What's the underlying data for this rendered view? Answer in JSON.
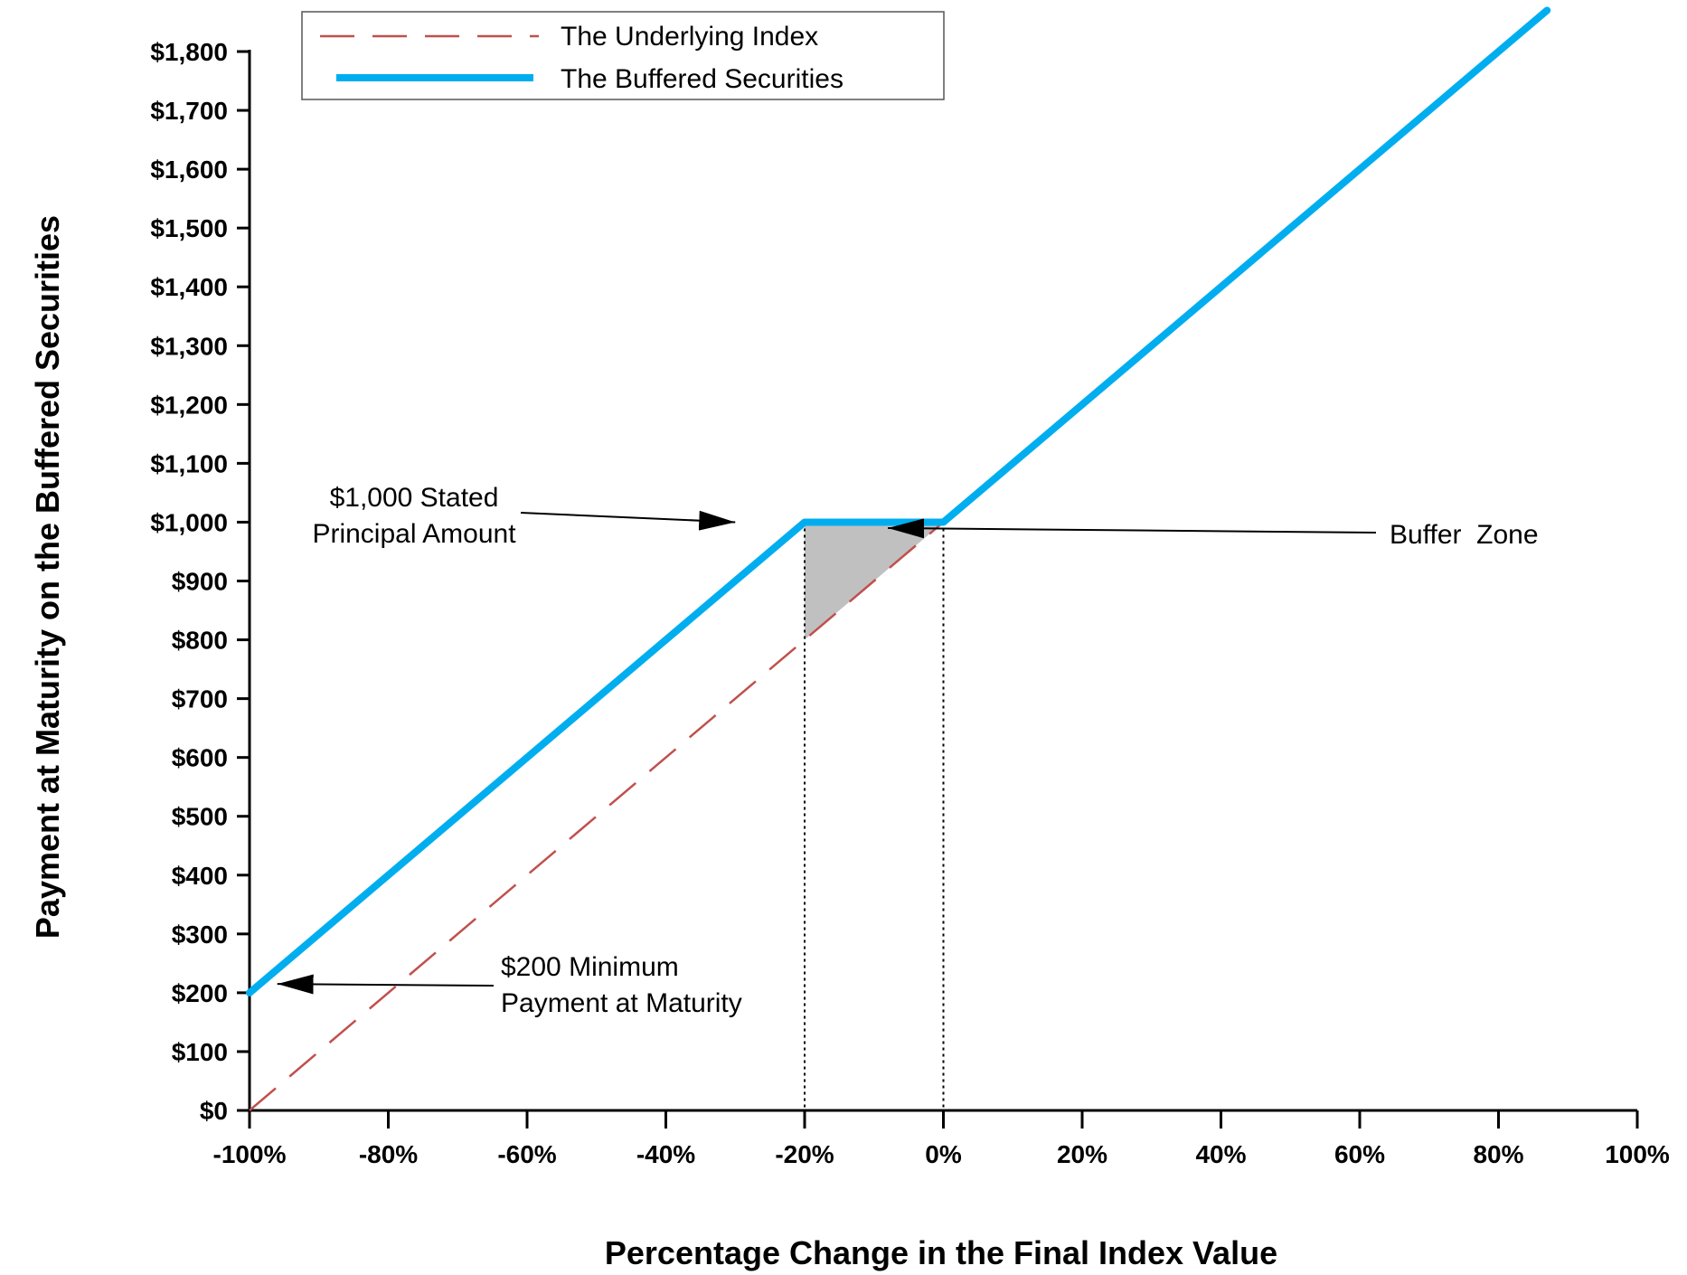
{
  "chart_data": {
    "type": "line",
    "xlabel": "Percentage Change in the Final Index Value",
    "ylabel": "Payment at Maturity on the Buffered Securities",
    "xlim": [
      -100,
      100
    ],
    "ylim": [
      0,
      1800
    ],
    "x_ticks": [
      {
        "value": -100,
        "label": "-100%"
      },
      {
        "value": -80,
        "label": "-80%"
      },
      {
        "value": -60,
        "label": "-60%"
      },
      {
        "value": -40,
        "label": "-40%"
      },
      {
        "value": -20,
        "label": "-20%"
      },
      {
        "value": 0,
        "label": "0%"
      },
      {
        "value": 20,
        "label": "20%"
      },
      {
        "value": 40,
        "label": "40%"
      },
      {
        "value": 60,
        "label": "60%"
      },
      {
        "value": 80,
        "label": "80%"
      },
      {
        "value": 100,
        "label": "100%"
      }
    ],
    "y_ticks": [
      {
        "value": 0,
        "label": "$0"
      },
      {
        "value": 100,
        "label": "$100"
      },
      {
        "value": 200,
        "label": "$200"
      },
      {
        "value": 300,
        "label": "$300"
      },
      {
        "value": 400,
        "label": "$400"
      },
      {
        "value": 500,
        "label": "$500"
      },
      {
        "value": 600,
        "label": "$600"
      },
      {
        "value": 700,
        "label": "$700"
      },
      {
        "value": 800,
        "label": "$800"
      },
      {
        "value": 900,
        "label": "$900"
      },
      {
        "value": 1000,
        "label": "$1,000"
      },
      {
        "value": 1100,
        "label": "$1,100"
      },
      {
        "value": 1200,
        "label": "$1,200"
      },
      {
        "value": 1300,
        "label": "$1,300"
      },
      {
        "value": 1400,
        "label": "$1,400"
      },
      {
        "value": 1500,
        "label": "$1,500"
      },
      {
        "value": 1600,
        "label": "$1,600"
      },
      {
        "value": 1700,
        "label": "$1,700"
      },
      {
        "value": 1800,
        "label": "$1,800"
      }
    ],
    "series": [
      {
        "name": "The Underlying Index",
        "style": "dashed",
        "color": "#c0504d",
        "points": [
          [
            -100,
            0
          ],
          [
            0,
            1000
          ]
        ]
      },
      {
        "name": "The Buffered Securities",
        "style": "solid",
        "color": "#00aeef",
        "points": [
          [
            -100,
            200
          ],
          [
            -20,
            1000
          ],
          [
            0,
            1000
          ],
          [
            87,
            1870
          ]
        ]
      }
    ],
    "buffer_zone": {
      "color": "#c0c0c0",
      "points": [
        [
          -20,
          1000
        ],
        [
          0,
          1000
        ],
        [
          -20,
          800
        ]
      ]
    },
    "reference_lines": [
      {
        "x": -20,
        "y_top": 1000,
        "style": "dotted"
      },
      {
        "x": 0,
        "y_top": 1000,
        "style": "dotted"
      }
    ],
    "annotations": [
      {
        "id": "principal",
        "lines": [
          "$1,000 Stated",
          "Principal Amount"
        ],
        "arrow_to": [
          -30,
          1000
        ]
      },
      {
        "id": "buffer",
        "lines": [
          "Buffer  Zone"
        ],
        "arrow_to": [
          -8,
          990
        ]
      },
      {
        "id": "minimum",
        "lines": [
          "$200 Minimum",
          "Payment at Maturity"
        ],
        "arrow_to": [
          -96,
          215
        ]
      }
    ],
    "legend": {
      "placement": "top-left"
    }
  }
}
